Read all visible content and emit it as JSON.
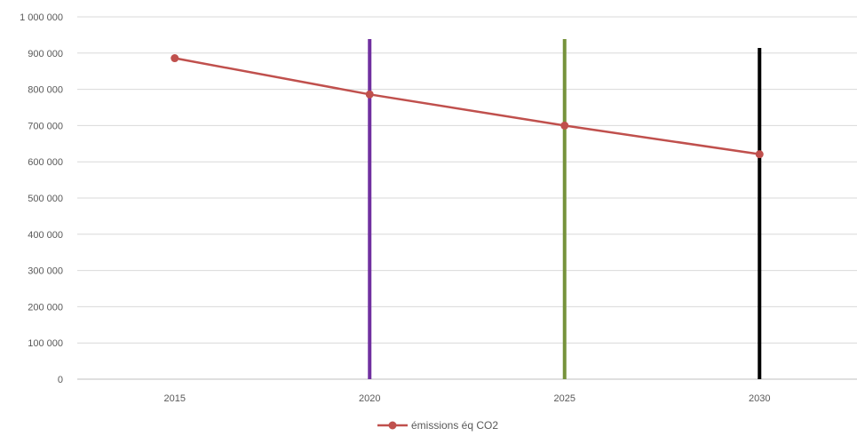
{
  "chart_data": {
    "type": "line",
    "categories": [
      "2015",
      "2020",
      "2025",
      "2030"
    ],
    "series": [
      {
        "name": "émissions éq CO2",
        "values": [
          886000,
          786000,
          700000,
          621000
        ],
        "color": "#c0504d"
      }
    ],
    "ylim": [
      0,
      1000000
    ],
    "yticks": [
      "0",
      "100 000",
      "200 000",
      "300 000",
      "400 000",
      "500 000",
      "600 000",
      "700 000",
      "800 000",
      "900 000",
      "1 000 000"
    ],
    "grid": true,
    "legend": "bottom",
    "reference_lines": [
      {
        "x": "2020",
        "color": "#7030a0"
      },
      {
        "x": "2025",
        "color": "#77933c"
      },
      {
        "x": "2030",
        "color": "#000000"
      }
    ]
  }
}
